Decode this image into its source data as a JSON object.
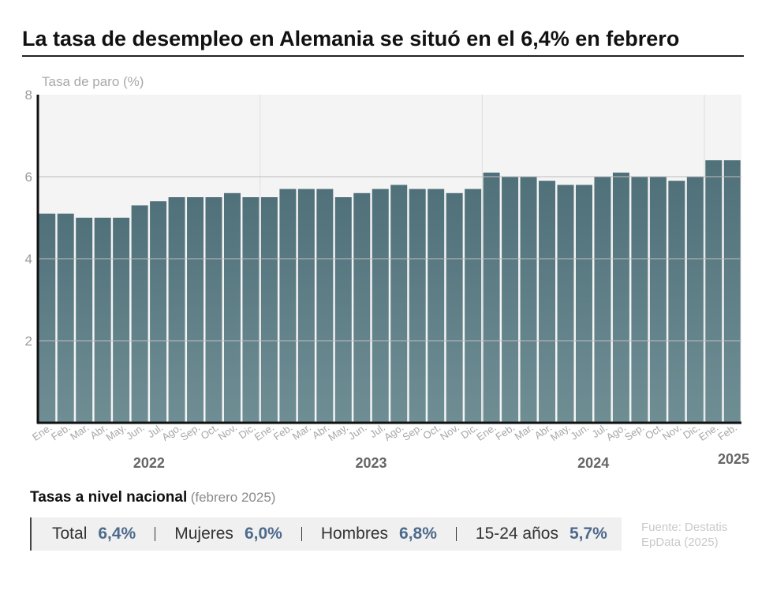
{
  "title": "La tasa de desempleo en Alemania se situó en el 6,4% en febrero",
  "chart_data": {
    "type": "bar",
    "ylabel": "Tasa de paro (%)",
    "ylim": [
      0,
      8
    ],
    "yticks": [
      "2",
      "4",
      "6",
      "8"
    ],
    "grid": true,
    "categories": [
      "Ene.",
      "Feb.",
      "Mar.",
      "Abr.",
      "May.",
      "Jun.",
      "Jul.",
      "Ago.",
      "Sep.",
      "Oct.",
      "Nov.",
      "Dic.",
      "Ene.",
      "Feb.",
      "Mar.",
      "Abr.",
      "May.",
      "Jun.",
      "Jul.",
      "Ago.",
      "Sep.",
      "Oct.",
      "Nov.",
      "Dic.",
      "Ene.",
      "Feb.",
      "Mar.",
      "Abr.",
      "May.",
      "Jun.",
      "Jul.",
      "Ago.",
      "Sep.",
      "Oct.",
      "Nov.",
      "Dic.",
      "Ene.",
      "Feb."
    ],
    "values": [
      5.1,
      5.1,
      5.0,
      5.0,
      5.0,
      5.3,
      5.4,
      5.5,
      5.5,
      5.5,
      5.6,
      5.5,
      5.5,
      5.7,
      5.7,
      5.7,
      5.5,
      5.6,
      5.7,
      5.8,
      5.7,
      5.7,
      5.6,
      5.7,
      6.1,
      6.0,
      6.0,
      5.9,
      5.8,
      5.8,
      6.0,
      6.1,
      6.0,
      6.0,
      5.9,
      6.0,
      6.4,
      6.4
    ],
    "years": [
      {
        "label": "2022",
        "start": 0,
        "end": 11
      },
      {
        "label": "2023",
        "start": 12,
        "end": 23
      },
      {
        "label": "2024",
        "start": 24,
        "end": 35
      },
      {
        "label": "2025",
        "start": 36,
        "end": 37
      }
    ],
    "colors": {
      "bar_top": "#50707a",
      "bar_bottom": "#6f8e94",
      "plot_bg": "#f4f4f4",
      "grid": "#bdbdbd",
      "axis": "#111111"
    }
  },
  "summary": {
    "heading": "Tasas a nivel nacional",
    "subheading": "(febrero 2025)",
    "stats": [
      {
        "label": "Total",
        "value": "6,4%"
      },
      {
        "label": "Mujeres",
        "value": "6,0%"
      },
      {
        "label": "Hombres",
        "value": "6,8%"
      },
      {
        "label": "15-24 años",
        "value": "5,7%"
      }
    ]
  },
  "source": {
    "line1": "Fuente: Destatis",
    "line2": "EpData (2025)"
  }
}
